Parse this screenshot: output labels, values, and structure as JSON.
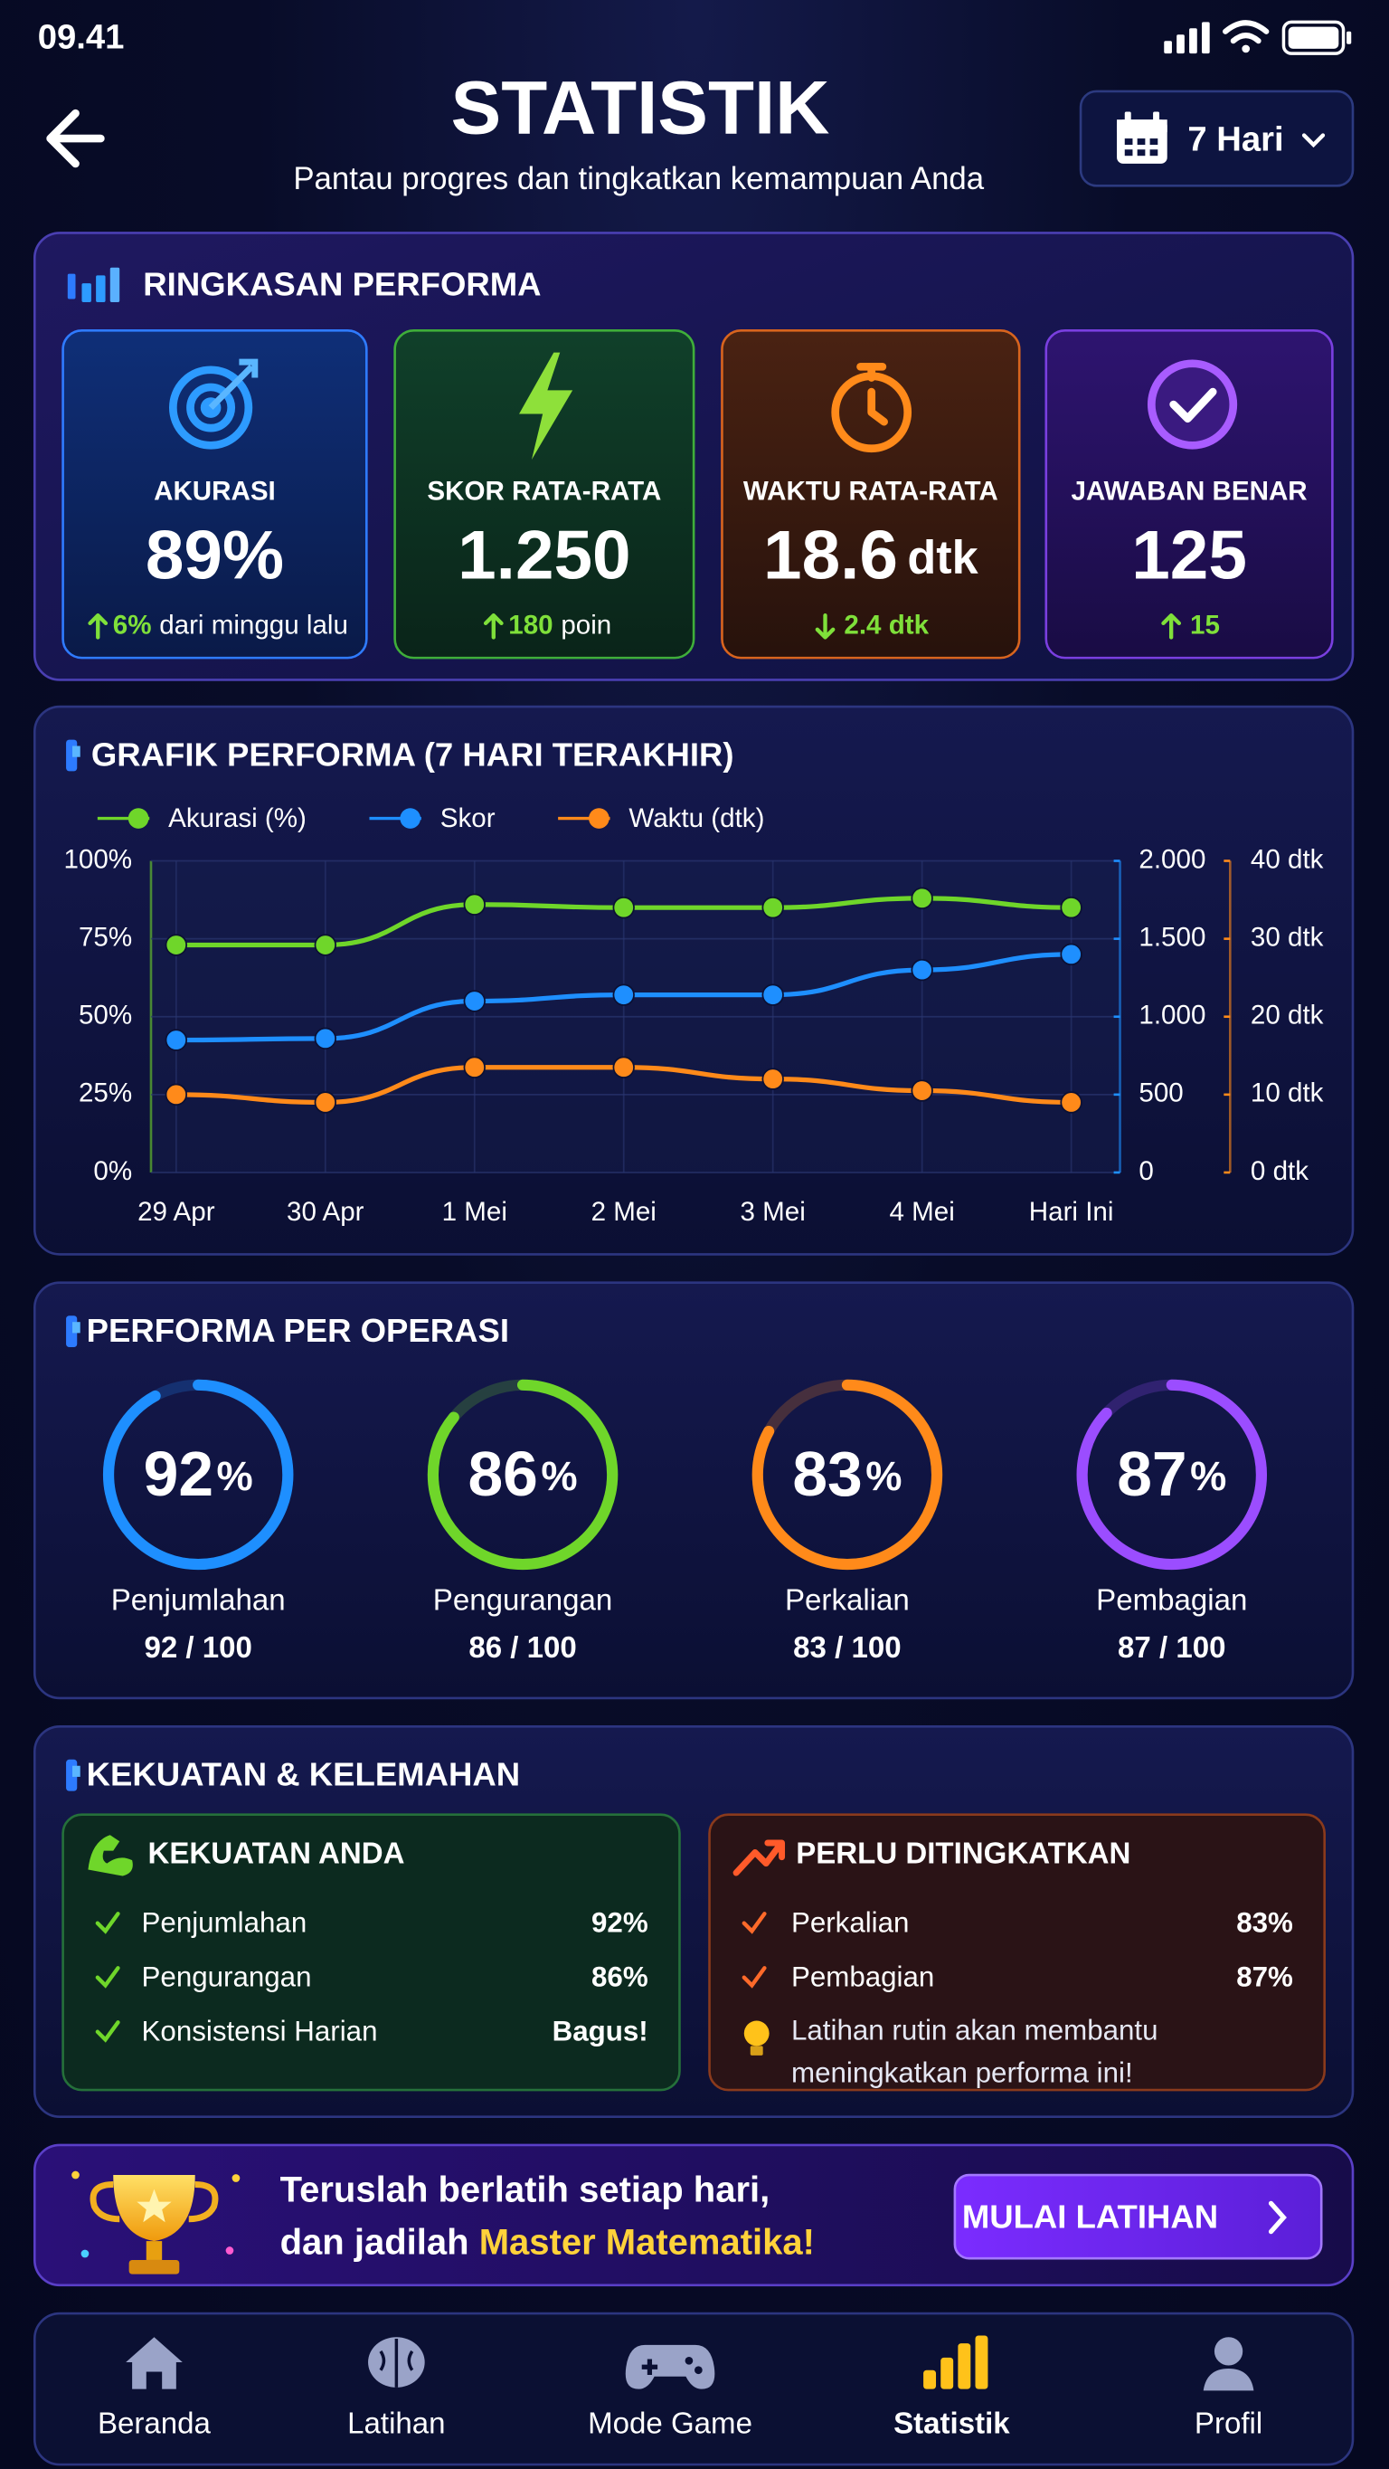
{
  "status_bar": {
    "time": "09.41"
  },
  "header": {
    "title": "STATISTIK",
    "subtitle": "Pantau progres dan tingkatkan kemampuan Anda",
    "period": "7 Hari"
  },
  "summary": {
    "title": "RINGKASAN PERFORMA",
    "cards": [
      {
        "label": "AKURASI",
        "value": "89%",
        "trend": "up",
        "change": "6%",
        "note": "dari minggu lalu"
      },
      {
        "label": "SKOR RATA-RATA",
        "value": "1.250",
        "trend": "up",
        "change": "180",
        "note": "poin"
      },
      {
        "label": "WAKTU RATA-RATA",
        "value": "18.6",
        "unit": "dtk",
        "trend": "down",
        "change": "2.4 dtk"
      },
      {
        "label": "JAWABAN BENAR",
        "value": "125",
        "trend": "up",
        "change": "15"
      }
    ]
  },
  "chart_data": {
    "type": "line",
    "title": "GRAFIK PERFORMA (7 HARI TERAKHIR)",
    "categories": [
      "29 Apr",
      "30 Apr",
      "1 Mei",
      "2 Mei",
      "3 Mei",
      "4 Mei",
      "Hari Ini"
    ],
    "series": [
      {
        "name": "Akurasi (%)",
        "color": "#6fd62a",
        "values": [
          73,
          73,
          86,
          85,
          85,
          88,
          85
        ]
      },
      {
        "name": "Skor",
        "color": "#1e8fff",
        "axis": "y2",
        "values": [
          850,
          860,
          1100,
          1140,
          1140,
          1300,
          1400
        ]
      },
      {
        "name": "Waktu (dtk)",
        "color": "#ff8a1a",
        "axis": "y3",
        "values": [
          10,
          9,
          13.5,
          13.5,
          12,
          10.5,
          9
        ]
      }
    ],
    "ylim": [
      0,
      100
    ],
    "yticks": [
      {
        "value": 0,
        "label": "0%"
      },
      {
        "value": 25,
        "label": "25%"
      },
      {
        "value": 50,
        "label": "50%"
      },
      {
        "value": 75,
        "label": "75%"
      },
      {
        "value": 100,
        "label": "100%"
      }
    ],
    "y2lim": [
      0,
      2000
    ],
    "y2ticks": [
      0,
      500,
      {
        "value": 1000,
        "label": "1.000"
      },
      {
        "value": 1500,
        "label": "1.500"
      },
      {
        "value": 2000,
        "label": "2.000"
      }
    ],
    "y3lim": [
      0,
      40
    ],
    "y3ticks": [
      {
        "value": 0,
        "label": "0 dtk"
      },
      {
        "value": 10,
        "label": "10 dtk"
      },
      {
        "value": 20,
        "label": "20 dtk"
      },
      {
        "value": 30,
        "label": "30 dtk"
      },
      {
        "value": 40,
        "label": "40 dtk"
      }
    ],
    "grid": true,
    "legend": "top-left"
  },
  "operations": {
    "title": "PERFORMA PER OPERASI",
    "max": 100,
    "items": [
      {
        "name": "Penjumlahan",
        "value": 92,
        "unit": "%",
        "score": "92 / 100",
        "color": "#1e8fff"
      },
      {
        "name": "Pengurangan",
        "value": 86,
        "unit": "%",
        "score": "86 / 100",
        "color": "#6fd62a"
      },
      {
        "name": "Perkalian",
        "value": 83,
        "unit": "%",
        "score": "83 / 100",
        "color": "#ff8a1a"
      },
      {
        "name": "Pembagian",
        "value": 87,
        "unit": "%",
        "score": "87 / 100",
        "color": "#9b4dff"
      }
    ]
  },
  "strengths": {
    "title": "KEKUATAN & KELEMAHAN",
    "strong": {
      "title": "KEKUATAN ANDA",
      "items": [
        {
          "name": "Penjumlahan",
          "value": "92%"
        },
        {
          "name": "Pengurangan",
          "value": "86%"
        },
        {
          "name": "Konsistensi Harian",
          "value": "Bagus!"
        }
      ]
    },
    "weak": {
      "title": "PERLU DITINGKATKAN",
      "items": [
        {
          "name": "Perkalian",
          "value": "83%"
        },
        {
          "name": "Pembagian",
          "value": "87%"
        }
      ],
      "tip": "Latihan rutin akan membantu meningkatkan performa ini!"
    }
  },
  "banner": {
    "line1": "Teruslah berlatih setiap hari,",
    "line2": "dan jadilah",
    "highlight": "Master Matematika!",
    "button": "MULAI LATIHAN"
  },
  "nav": {
    "items": [
      "Beranda",
      "Latihan",
      "Mode Game",
      "Statistik",
      "Profil"
    ],
    "active": 3
  }
}
